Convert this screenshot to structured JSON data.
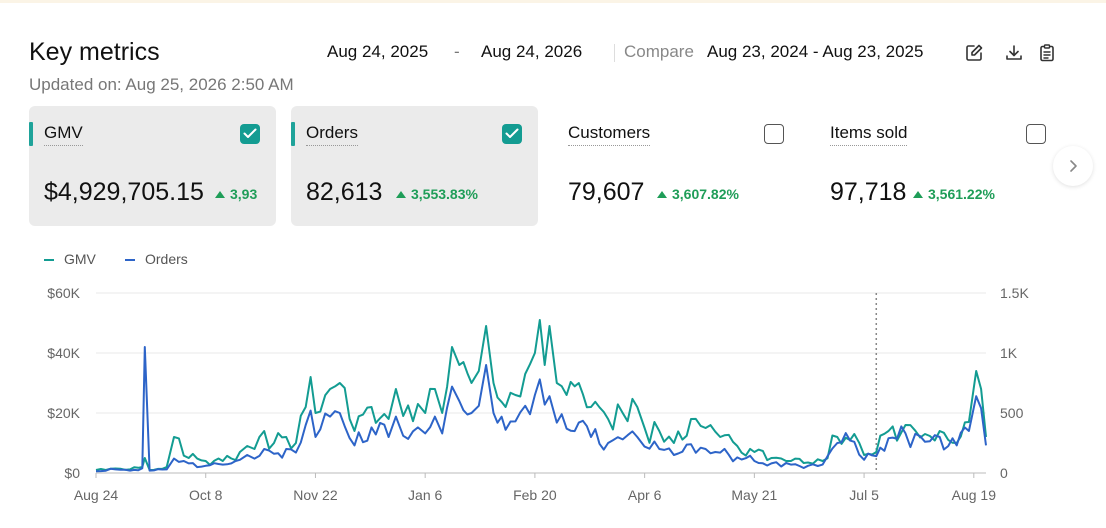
{
  "header": {
    "title": "Key metrics",
    "updated": "Updated on: Aug 25, 2026 2:50 AM",
    "date_start": "Aug 24, 2025",
    "date_sep": "-",
    "date_end": "Aug 24, 2026",
    "compare_label": "Compare",
    "compare_range": "Aug 23, 2024 - Aug 23, 2025"
  },
  "toolbar": {
    "icons": [
      "edit-icon",
      "download-icon",
      "report-icon"
    ]
  },
  "cards": [
    {
      "label": "GMV",
      "value": "$4,929,705.15",
      "delta": "3,93",
      "checked": true
    },
    {
      "label": "Orders",
      "value": "82,613",
      "delta": "3,553.83%",
      "checked": true
    },
    {
      "label": "Customers",
      "value": "79,607",
      "delta": "3,607.82%",
      "checked": false
    },
    {
      "label": "Items sold",
      "value": "97,718",
      "delta": "3,561.22%",
      "checked": false
    }
  ],
  "colors": {
    "gmv": "#139c92",
    "orders": "#2d64c8",
    "positive": "#1f9d58",
    "accent": "#1fa39a"
  },
  "chart_data": {
    "type": "line",
    "legend": [
      "GMV",
      "Orders"
    ],
    "legend_position": "top-left",
    "x_ticks": [
      "Aug 24",
      "Oct 8",
      "Nov 22",
      "Jan 6",
      "Feb 20",
      "Apr 6",
      "May 21",
      "Jul 5",
      "Aug 19"
    ],
    "y_left_ticks": [
      "$0",
      "$20K",
      "$40K",
      "$60K"
    ],
    "y_right_ticks": [
      "0",
      "500",
      "1K",
      "1.5K"
    ],
    "y_left_range": [
      0,
      60000
    ],
    "y_right_range": [
      0,
      1500
    ],
    "grid": true,
    "marker_date": "Jul 10",
    "series": [
      {
        "name": "GMV",
        "axis": "left",
        "points": [
          [
            "Aug 24",
            1000
          ],
          [
            "Sep 1",
            1500
          ],
          [
            "Sep 7",
            1200
          ],
          [
            "Sep 12",
            2000
          ],
          [
            "Sep 13",
            5000
          ],
          [
            "Sep 15",
            1000
          ],
          [
            "Sep 22",
            2000
          ],
          [
            "Sep 25",
            12000
          ],
          [
            "Oct 1",
            5000
          ],
          [
            "Oct 8",
            4000
          ],
          [
            "Oct 15",
            4000
          ],
          [
            "Oct 22",
            7000
          ],
          [
            "Oct 25",
            9000
          ],
          [
            "Oct 28",
            8000
          ],
          [
            "Nov 1",
            14000
          ],
          [
            "Nov 5",
            10000
          ],
          [
            "Nov 10",
            12000
          ],
          [
            "Nov 14",
            10000
          ],
          [
            "Nov 18",
            22000
          ],
          [
            "Nov 20",
            32000
          ],
          [
            "Nov 22",
            20000
          ],
          [
            "Nov 28",
            28000
          ],
          [
            "Dec 2",
            30000
          ],
          [
            "Dec 8",
            14000
          ],
          [
            "Dec 15",
            22000
          ],
          [
            "Dec 22",
            18000
          ],
          [
            "Dec 25",
            28000
          ],
          [
            "Dec 28",
            19000
          ],
          [
            "Jan 3",
            23000
          ],
          [
            "Jan 6",
            20000
          ],
          [
            "Jan 10",
            28000
          ],
          [
            "Jan 13",
            20000
          ],
          [
            "Jan 17",
            42000
          ],
          [
            "Jan 20",
            36000
          ],
          [
            "Jan 25",
            30000
          ],
          [
            "Jan 28",
            34000
          ],
          [
            "Jan 31",
            49000
          ],
          [
            "Feb 3",
            30000
          ],
          [
            "Feb 8",
            22000
          ],
          [
            "Feb 12",
            26000
          ],
          [
            "Feb 16",
            33000
          ],
          [
            "Feb 20",
            40000
          ],
          [
            "Feb 22",
            51000
          ],
          [
            "Feb 24",
            36000
          ],
          [
            "Feb 26",
            49000
          ],
          [
            "Mar 1",
            30000
          ],
          [
            "Mar 5",
            26000
          ],
          [
            "Mar 10",
            30000
          ],
          [
            "Mar 15",
            22000
          ],
          [
            "Mar 22",
            18000
          ],
          [
            "Mar 28",
            20000
          ],
          [
            "Apr 3",
            22000
          ],
          [
            "Apr 6",
            15000
          ],
          [
            "Apr 12",
            14000
          ],
          [
            "Apr 18",
            10000
          ],
          [
            "Apr 25",
            18000
          ],
          [
            "May 1",
            15000
          ],
          [
            "May 7",
            12000
          ],
          [
            "May 14",
            9000
          ],
          [
            "May 21",
            7000
          ],
          [
            "May 28",
            5000
          ],
          [
            "Jun 5",
            4000
          ],
          [
            "Jun 12",
            3500
          ],
          [
            "Jun 18",
            4000
          ],
          [
            "Jun 24",
            12000
          ],
          [
            "Jul 1",
            13000
          ],
          [
            "Jul 5",
            6000
          ],
          [
            "Jul 10",
            7000
          ],
          [
            "Jul 15",
            14000
          ],
          [
            "Jul 22",
            16000
          ],
          [
            "Jul 30",
            13000
          ],
          [
            "Aug 5",
            14000
          ],
          [
            "Aug 12",
            10000
          ],
          [
            "Aug 17",
            17000
          ],
          [
            "Aug 20",
            34000
          ],
          [
            "Aug 22",
            28000
          ],
          [
            "Aug 24",
            12000
          ]
        ]
      },
      {
        "name": "Orders",
        "axis": "right",
        "points": [
          [
            "Aug 24",
            15
          ],
          [
            "Sep 1",
            30
          ],
          [
            "Sep 7",
            20
          ],
          [
            "Sep 12",
            40
          ],
          [
            "Sep 13",
            1050
          ],
          [
            "Sep 15",
            20
          ],
          [
            "Sep 22",
            30
          ],
          [
            "Sep 25",
            120
          ],
          [
            "Oct 1",
            80
          ],
          [
            "Oct 8",
            60
          ],
          [
            "Oct 15",
            70
          ],
          [
            "Oct 22",
            110
          ],
          [
            "Oct 25",
            150
          ],
          [
            "Oct 28",
            120
          ],
          [
            "Nov 1",
            200
          ],
          [
            "Nov 5",
            160
          ],
          [
            "Nov 10",
            200
          ],
          [
            "Nov 14",
            170
          ],
          [
            "Nov 18",
            400
          ],
          [
            "Nov 20",
            520
          ],
          [
            "Nov 22",
            300
          ],
          [
            "Nov 28",
            470
          ],
          [
            "Dec 2",
            500
          ],
          [
            "Dec 8",
            230
          ],
          [
            "Dec 15",
            380
          ],
          [
            "Dec 22",
            300
          ],
          [
            "Dec 25",
            470
          ],
          [
            "Dec 28",
            310
          ],
          [
            "Jan 3",
            380
          ],
          [
            "Jan 6",
            330
          ],
          [
            "Jan 10",
            470
          ],
          [
            "Jan 13",
            330
          ],
          [
            "Jan 17",
            720
          ],
          [
            "Jan 20",
            600
          ],
          [
            "Jan 25",
            500
          ],
          [
            "Jan 28",
            560
          ],
          [
            "Jan 31",
            900
          ],
          [
            "Feb 3",
            500
          ],
          [
            "Feb 8",
            360
          ],
          [
            "Feb 12",
            430
          ],
          [
            "Feb 16",
            560
          ],
          [
            "Feb 20",
            650
          ],
          [
            "Feb 22",
            780
          ],
          [
            "Feb 24",
            570
          ],
          [
            "Feb 26",
            640
          ],
          [
            "Mar 1",
            420
          ],
          [
            "Mar 5",
            370
          ],
          [
            "Mar 10",
            420
          ],
          [
            "Mar 15",
            300
          ],
          [
            "Mar 22",
            250
          ],
          [
            "Mar 28",
            280
          ],
          [
            "Apr 3",
            300
          ],
          [
            "Apr 6",
            220
          ],
          [
            "Apr 12",
            200
          ],
          [
            "Apr 18",
            150
          ],
          [
            "Apr 25",
            240
          ],
          [
            "May 1",
            200
          ],
          [
            "May 7",
            170
          ],
          [
            "May 14",
            130
          ],
          [
            "May 21",
            100
          ],
          [
            "May 28",
            80
          ],
          [
            "Jun 5",
            70
          ],
          [
            "Jun 12",
            60
          ],
          [
            "Jun 18",
            70
          ],
          [
            "Jun 24",
            250
          ],
          [
            "Jul 1",
            260
          ],
          [
            "Jul 5",
            110
          ],
          [
            "Jul 10",
            140
          ],
          [
            "Jul 15",
            290
          ],
          [
            "Jul 22",
            330
          ],
          [
            "Jul 30",
            260
          ],
          [
            "Aug 5",
            300
          ],
          [
            "Aug 12",
            230
          ],
          [
            "Aug 17",
            350
          ],
          [
            "Aug 20",
            640
          ],
          [
            "Aug 22",
            540
          ],
          [
            "Aug 24",
            230
          ]
        ]
      }
    ]
  }
}
